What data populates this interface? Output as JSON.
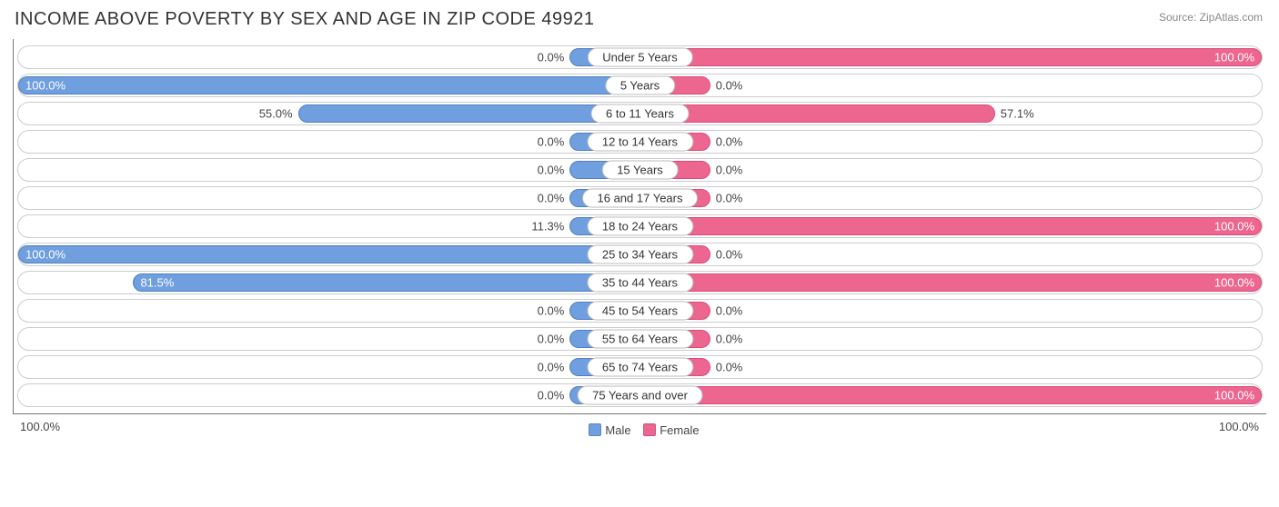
{
  "title": "INCOME ABOVE POVERTY BY SEX AND AGE IN ZIP CODE 49921",
  "source": "Source: ZipAtlas.com",
  "chart": {
    "type": "diverging-bar",
    "male_color": "#6f9fde",
    "male_border": "#4f7fc0",
    "female_color": "#ec6690",
    "female_border": "#d94b78",
    "track_border": "#cccccc",
    "min_bar_pct": 11.3,
    "background": "#ffffff",
    "axis_left": "100.0%",
    "axis_right": "100.0%",
    "legend": {
      "male": "Male",
      "female": "Female"
    },
    "rows": [
      {
        "label": "Under 5 Years",
        "male": 0.0,
        "female": 100.0
      },
      {
        "label": "5 Years",
        "male": 100.0,
        "female": 0.0
      },
      {
        "label": "6 to 11 Years",
        "male": 55.0,
        "female": 57.1
      },
      {
        "label": "12 to 14 Years",
        "male": 0.0,
        "female": 0.0
      },
      {
        "label": "15 Years",
        "male": 0.0,
        "female": 0.0
      },
      {
        "label": "16 and 17 Years",
        "male": 0.0,
        "female": 0.0
      },
      {
        "label": "18 to 24 Years",
        "male": 11.3,
        "female": 100.0
      },
      {
        "label": "25 to 34 Years",
        "male": 100.0,
        "female": 0.0
      },
      {
        "label": "35 to 44 Years",
        "male": 81.5,
        "female": 100.0
      },
      {
        "label": "45 to 54 Years",
        "male": 0.0,
        "female": 0.0
      },
      {
        "label": "55 to 64 Years",
        "male": 0.0,
        "female": 0.0
      },
      {
        "label": "65 to 74 Years",
        "male": 0.0,
        "female": 0.0
      },
      {
        "label": "75 Years and over",
        "male": 0.0,
        "female": 100.0
      }
    ]
  }
}
